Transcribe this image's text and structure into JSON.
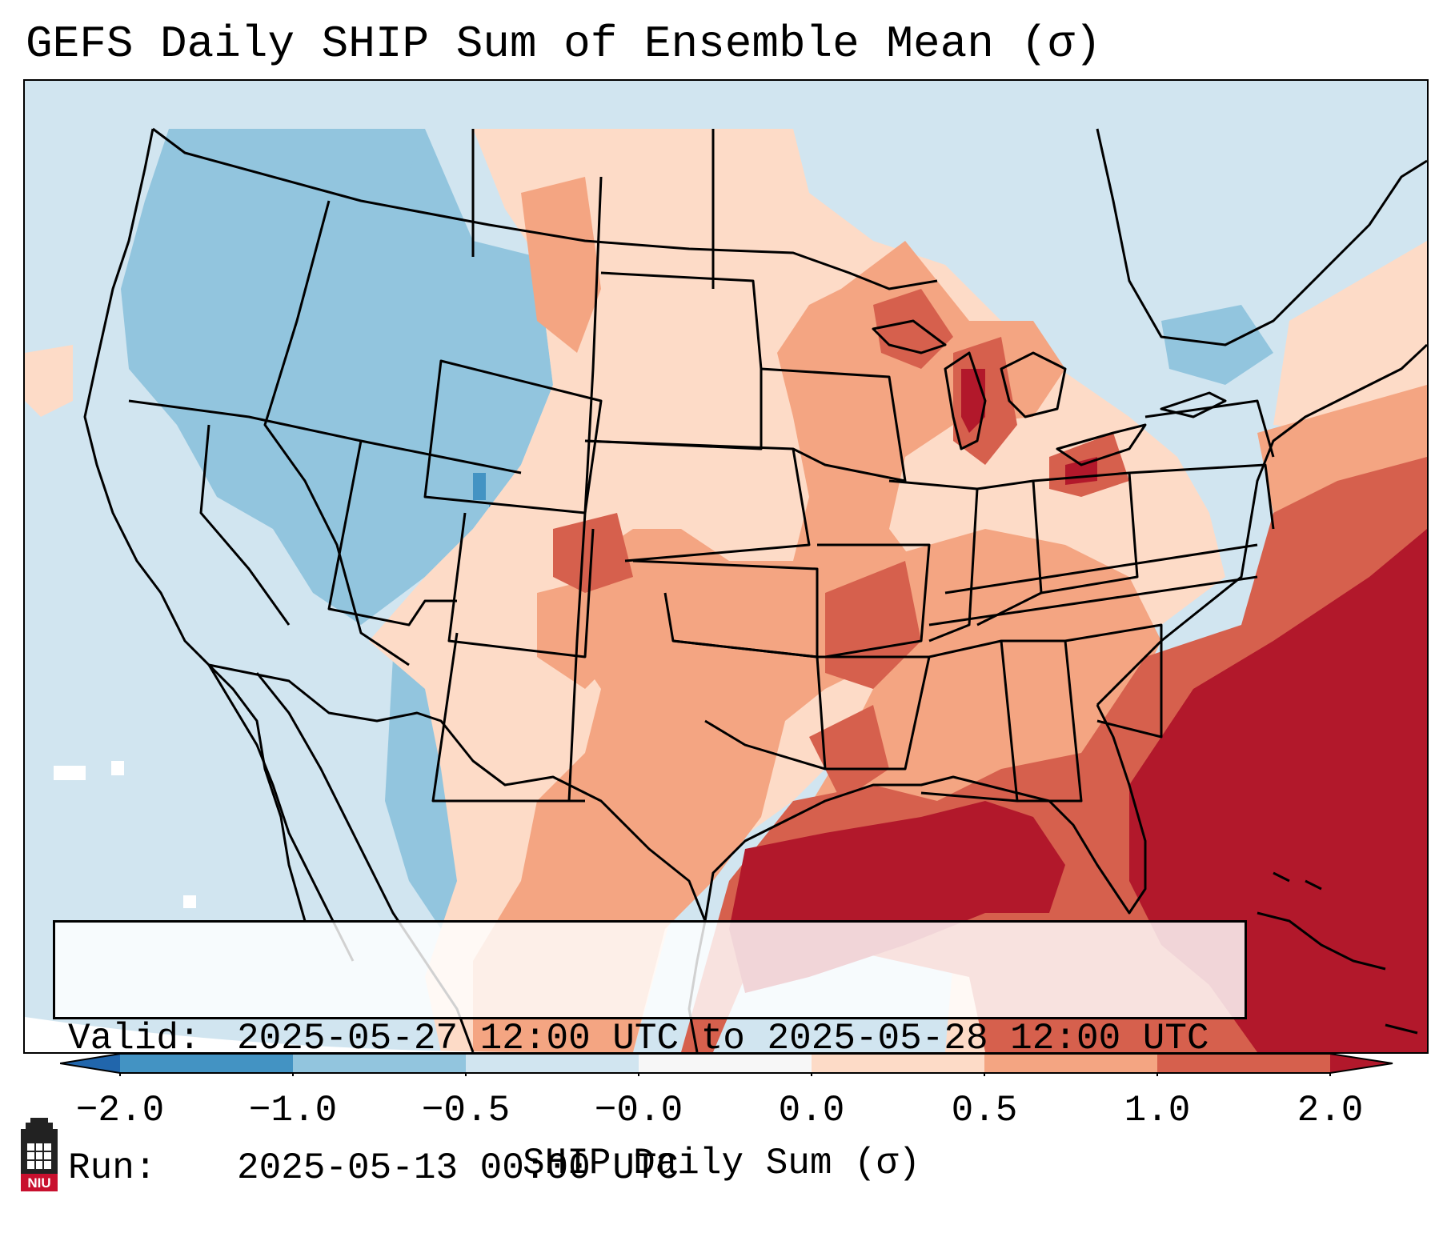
{
  "title": "GEFS Daily SHIP Sum of Ensemble Mean (σ)",
  "info": {
    "valid_key": "Valid:",
    "valid_value": "2025-05-27 12:00 UTC to 2025-05-28 12:00 UTC",
    "run_key": "Run:",
    "run_value": "2025-05-13 00:00 UTC"
  },
  "colorbar": {
    "label": "SHIP Daily Sum (σ)",
    "ticks": [
      "−2.0",
      "−1.0",
      "−0.5",
      "−0.0",
      "0.0",
      "0.5",
      "1.0",
      "2.0"
    ],
    "bins": [
      {
        "from": -2.0,
        "to": -1.0,
        "color": "#4393c3"
      },
      {
        "from": -1.0,
        "to": -0.5,
        "color": "#92c5de"
      },
      {
        "from": -0.5,
        "to": -0.0,
        "color": "#d1e5f0"
      },
      {
        "from": -0.0,
        "to": 0.0,
        "color": "#f7f7f7"
      },
      {
        "from": 0.0,
        "to": 0.5,
        "color": "#fddbc7"
      },
      {
        "from": 0.5,
        "to": 1.0,
        "color": "#f4a582"
      },
      {
        "from": 1.0,
        "to": 2.0,
        "color": "#d6604d"
      }
    ],
    "under_color": "#2166ac",
    "over_color": "#b2182b"
  },
  "logo": {
    "text": "NIU",
    "color": "#c8102e"
  }
}
